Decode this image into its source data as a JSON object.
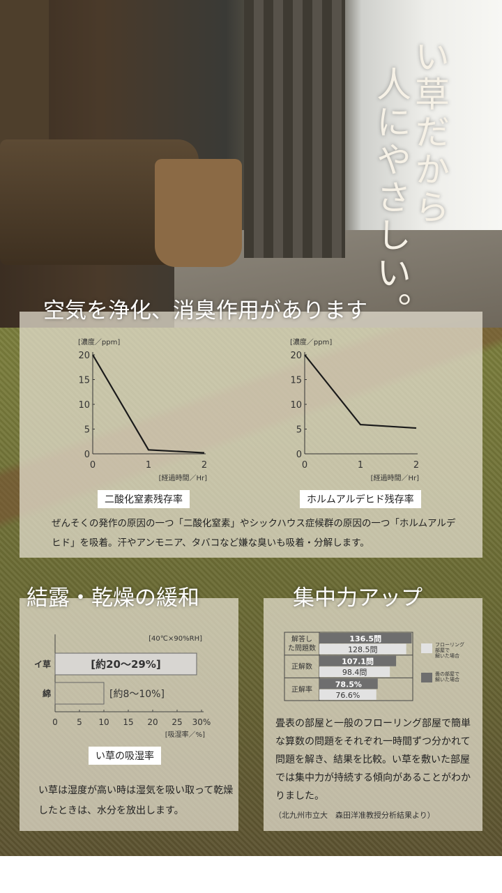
{
  "hero": {
    "title_col1": "い草だから",
    "title_col2": "人にやさしい。"
  },
  "section1": {
    "heading": "空気を浄化、消臭作用があります",
    "description": "ぜんそくの発作の原因の一つ「二酸化窒素」やシックハウス症候群の原因の一つ「ホルムアルデヒド」を吸着。汗やアンモニア、タバコなど嫌な臭いも吸着・分解します。"
  },
  "section2": {
    "heading": "結露・乾燥の緩和",
    "description": "い草は湿度が高い時は湿気を吸い取って乾燥したときは、水分を放出します。"
  },
  "section3": {
    "heading": "集中力アップ",
    "description": "畳表の部屋と一般のフローリング部屋で簡単な算数の問題をそれぞれ一時間ずつ分かれて問題を解き、結果を比較。い草を敷いた部屋では集中力が持続する傾向があることがわかりました。",
    "source": "（北九州市立大　森田洋准教授分析結果より）"
  },
  "chart_data": [
    {
      "type": "line",
      "title": "二酸化窒素残存率",
      "xlabel": "[経過時間／Hr]",
      "ylabel": "[濃度／ppm]",
      "x": [
        0,
        1,
        2
      ],
      "y": [
        20,
        0.8,
        0.2
      ],
      "xlim": [
        0,
        2
      ],
      "ylim": [
        0,
        20
      ],
      "xticks": [
        "0",
        "1",
        "2"
      ],
      "yticks": [
        "0",
        "5",
        "10",
        "15",
        "20"
      ],
      "grid": false,
      "color": "#1a1a1a"
    },
    {
      "type": "line",
      "title": "ホルムアルデヒド残存率",
      "xlabel": "[経過時間／Hr]",
      "ylabel": "[濃度／ppm]",
      "x": [
        0,
        1,
        2
      ],
      "y": [
        20,
        5.9,
        5.2
      ],
      "xlim": [
        0,
        2
      ],
      "ylim": [
        0,
        20
      ],
      "xticks": [
        "0",
        "1",
        "2"
      ],
      "yticks": [
        "0",
        "5",
        "10",
        "15",
        "20"
      ],
      "grid": false,
      "color": "#1a1a1a"
    },
    {
      "type": "bar",
      "orientation": "horizontal",
      "title": "い草の吸湿率",
      "condition": "[40℃×90%RH]",
      "xlabel": "[吸湿率／%]",
      "categories": [
        "イ草",
        "綿"
      ],
      "values": [
        29,
        10
      ],
      "data_labels": [
        "[約20〜29%]",
        "[約8〜10%]"
      ],
      "xlim": [
        0,
        30
      ],
      "xticks": [
        "0",
        "5",
        "10",
        "15",
        "20",
        "25",
        "30%"
      ],
      "colors": [
        "#d8d6d2",
        "transparent"
      ]
    },
    {
      "type": "bar",
      "orientation": "horizontal",
      "categories": [
        "解答した問題数",
        "正解数",
        "正解率"
      ],
      "series": [
        {
          "name": "畳の部屋で解いた場合",
          "values": [
            136.5,
            107.1,
            78.5
          ],
          "labels": [
            "136.5問",
            "107.1問",
            "78.5%"
          ],
          "color": "#6e6e6e"
        },
        {
          "name": "フローリング部屋で解いた場合",
          "values": [
            128.5,
            98.4,
            76.6
          ],
          "labels": [
            "128.5問",
            "98.4問",
            "76.6%"
          ],
          "color": "#e2e2e2"
        }
      ],
      "legend": "right"
    }
  ]
}
